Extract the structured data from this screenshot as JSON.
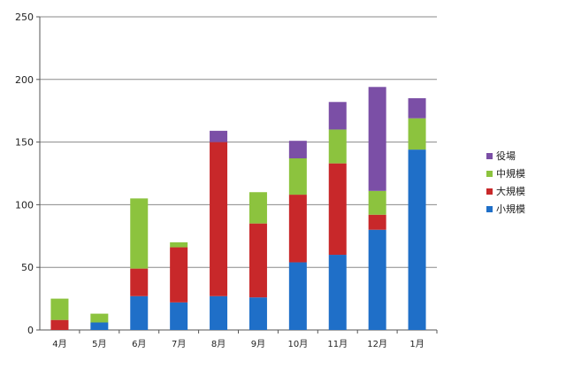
{
  "chart_data": {
    "type": "bar",
    "stacked": true,
    "categories": [
      "4月",
      "5月",
      "6月",
      "7月",
      "8月",
      "9月",
      "10月",
      "11月",
      "12月",
      "1月"
    ],
    "series": [
      {
        "name": "小規模",
        "color": "#1f6fc8",
        "values": [
          0,
          6,
          27,
          22,
          27,
          26,
          54,
          60,
          80,
          144
        ]
      },
      {
        "name": "大規模",
        "color": "#c8282a",
        "values": [
          8,
          0,
          22,
          44,
          123,
          59,
          54,
          73,
          12,
          0
        ]
      },
      {
        "name": "中規模",
        "color": "#8cc33e",
        "values": [
          17,
          7,
          56,
          4,
          0,
          25,
          29,
          27,
          19,
          25
        ]
      },
      {
        "name": "役場",
        "color": "#7b4fa6",
        "values": [
          0,
          0,
          0,
          0,
          9,
          0,
          14,
          22,
          83,
          16
        ]
      }
    ],
    "legend_order": [
      "役場",
      "中規模",
      "大規模",
      "小規模"
    ],
    "ylim": [
      0,
      250
    ],
    "yticks": [
      0,
      50,
      100,
      150,
      200,
      250
    ],
    "grid": true,
    "legend_position": "right",
    "title": "",
    "xlabel": "",
    "ylabel": ""
  }
}
